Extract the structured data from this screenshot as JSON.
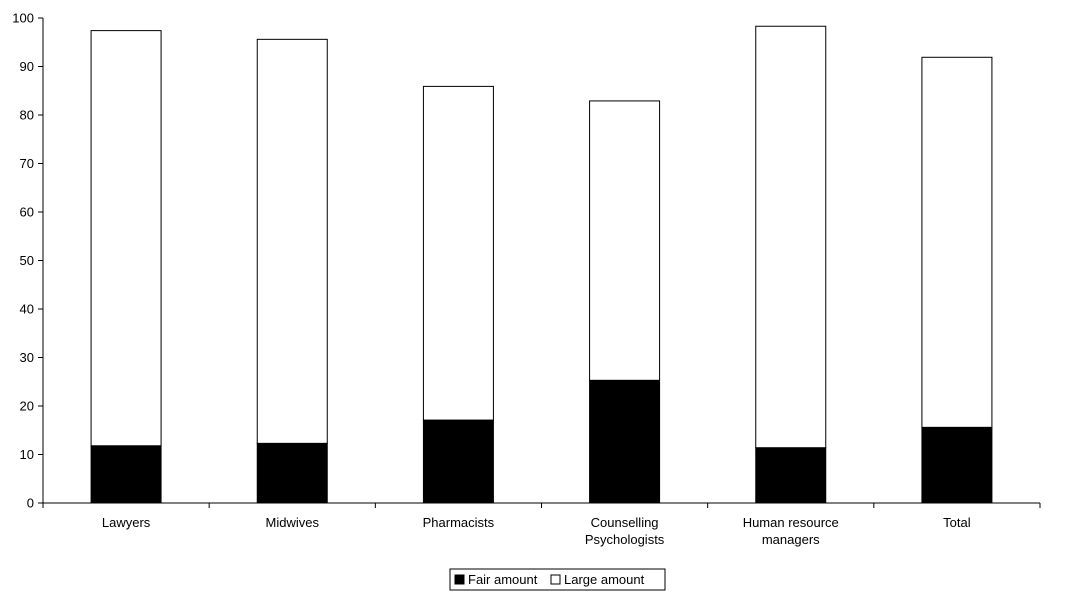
{
  "chart_data": {
    "type": "bar",
    "stacked": true,
    "categories": [
      [
        "Lawyers"
      ],
      [
        "Midwives"
      ],
      [
        "Pharmacists"
      ],
      [
        "Counselling",
        "Psychologists"
      ],
      [
        "Human resource",
        "managers"
      ],
      [
        "Total"
      ]
    ],
    "series": [
      {
        "name": "Fair amount",
        "values": [
          11.8,
          12.3,
          17.1,
          25.3,
          11.4,
          15.6
        ],
        "color": "#000000"
      },
      {
        "name": "Large amount",
        "values": [
          85.6,
          83.3,
          68.8,
          57.6,
          86.9,
          76.3
        ],
        "color": "#ffffff"
      }
    ],
    "ylim": [
      0,
      100
    ],
    "yticks": [
      0,
      10,
      20,
      30,
      40,
      50,
      60,
      70,
      80,
      90,
      100
    ],
    "title": "",
    "xlabel": "",
    "ylabel": "",
    "grid": false,
    "legend_position": "bottom"
  }
}
